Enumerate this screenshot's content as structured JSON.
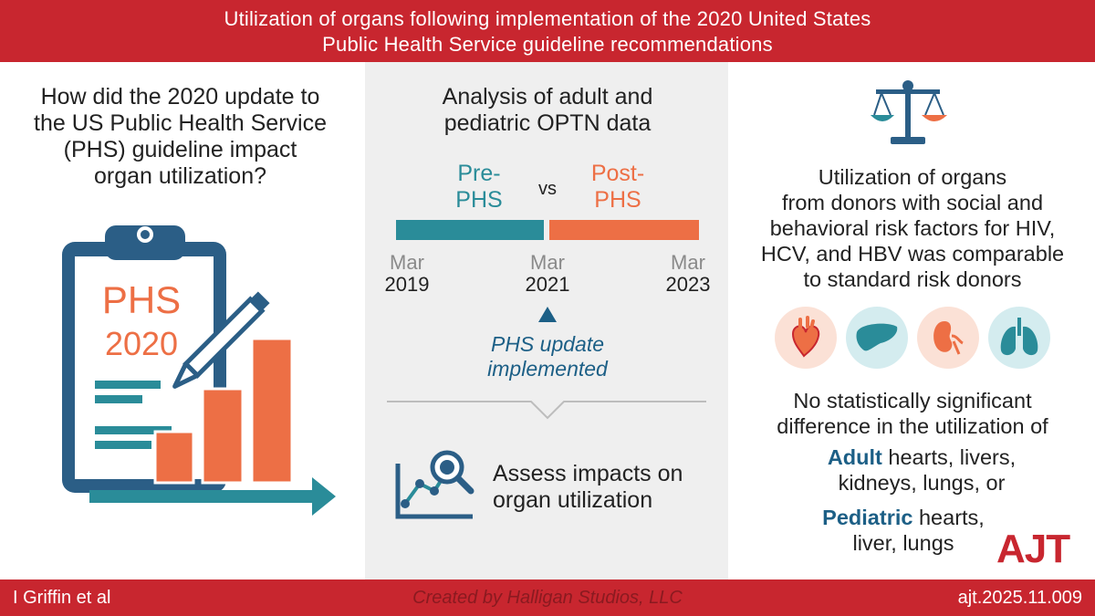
{
  "header": {
    "title_line1": "Utilization of organs following implementation of the 2020 United States",
    "title_line2": "Public Health Service guideline recommendations"
  },
  "left": {
    "question_lines": [
      "How did the 2020 update to",
      "the US Public Health Service",
      "(PHS) guideline impact",
      "organ utilization?"
    ],
    "clipboard_line1": "PHS",
    "clipboard_line2": "2020"
  },
  "middle": {
    "analysis_lines": [
      "Analysis of adult and",
      "pediatric OPTN data"
    ],
    "pre_lines": [
      "Pre-",
      "PHS"
    ],
    "vs": "vs",
    "post_lines": [
      "Post-",
      "PHS"
    ],
    "timeline": [
      {
        "month": "Mar",
        "year": "2019"
      },
      {
        "month": "Mar",
        "year": "2021"
      },
      {
        "month": "Mar",
        "year": "2023"
      }
    ],
    "update_lines": [
      "PHS update",
      "implemented"
    ],
    "assess_lines": [
      "Assess impacts on",
      "organ utilization"
    ]
  },
  "right": {
    "finding_lines": [
      "Utilization of organs",
      "from donors with social and",
      "behavioral risk factors for HIV,",
      "HCV, and HBV was comparable",
      "to standard risk donors"
    ],
    "organ_icons": [
      "heart-icon",
      "liver-icon",
      "kidney-icon",
      "lungs-icon"
    ],
    "no_diff_lines": [
      "No statistically significant",
      "difference in the utilization of"
    ],
    "adult_label": "Adult",
    "adult_rest_line1": " hearts, livers,",
    "adult_line2": "kidneys, lungs, or",
    "pediatric_label": "Pediatric",
    "pediatric_rest_line1": " hearts,",
    "pediatric_line2": "liver, lungs",
    "journal_logo": "AJT"
  },
  "footer": {
    "author": "I Griffin et al",
    "credit": "Created by Halligan Studios, LLC",
    "doi": "ajt.2025.11.009"
  },
  "colors": {
    "brand_red": "#c8262f",
    "teal": "#2a8c99",
    "orange": "#ed6f45",
    "navy": "#1c5f86",
    "panel_gray": "#efefef"
  }
}
